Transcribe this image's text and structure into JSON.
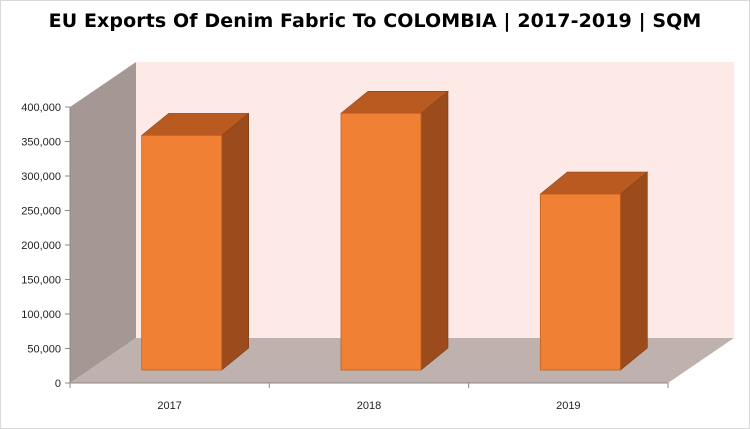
{
  "chart_data": {
    "type": "bar",
    "title": "EU Exports Of Denim Fabric To COLOMBIA | 2017-2019 | SQM",
    "categories": [
      "2017",
      "2018",
      "2019"
    ],
    "values": [
      340000,
      372000,
      255000
    ],
    "ylim": [
      0,
      400000
    ],
    "yticks": [
      "0",
      "50,000",
      "100,000",
      "150,000",
      "200,000",
      "250,000",
      "300,000",
      "350,000",
      "400,000"
    ],
    "ytick_values": [
      0,
      50000,
      100000,
      150000,
      200000,
      250000,
      300000,
      350000,
      400000
    ],
    "xlabel": "",
    "ylabel": "",
    "grid": false,
    "legend": "none",
    "style": "3d-column",
    "colors": {
      "bar_front": "#f08033",
      "bar_side": "#9c4c1c",
      "bar_top": "#b95a20",
      "back_wall": "#fde9e5",
      "side_wall": "#a59894",
      "floor": "#bfb1ad"
    }
  }
}
